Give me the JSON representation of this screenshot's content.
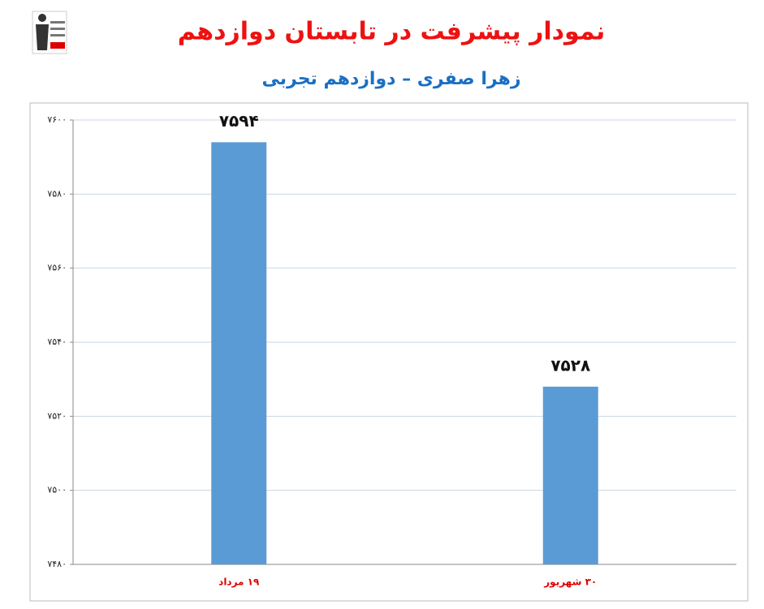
{
  "chart_data": {
    "type": "bar",
    "title": "نمودار پیشرفت در تابستان دوازدهم",
    "subtitle": "زهرا صفری – دوازدهم تجربی",
    "categories": [
      "۱۹ مرداد",
      "۳۰ شهریور"
    ],
    "values": [
      7594,
      7528
    ],
    "value_labels": [
      "۷۵۹۴",
      "۷۵۲۸"
    ],
    "color": "#5b9bd5",
    "ylim": [
      7480,
      7600
    ],
    "yticks": [
      {
        "value": 7480,
        "label": "۷۴۸۰"
      },
      {
        "value": 7500,
        "label": "۷۵۰۰"
      },
      {
        "value": 7520,
        "label": "۷۵۲۰"
      },
      {
        "value": 7540,
        "label": "۷۵۴۰"
      },
      {
        "value": 7560,
        "label": "۷۵۶۰"
      },
      {
        "value": 7580,
        "label": "۷۵۸۰"
      },
      {
        "value": 7600,
        "label": "۷۶۰۰"
      }
    ],
    "grid": true
  }
}
